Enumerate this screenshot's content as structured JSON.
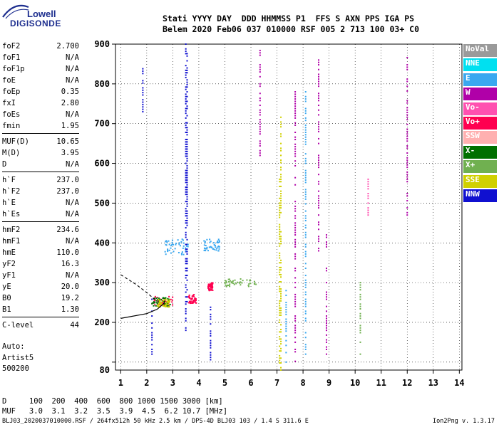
{
  "logo": {
    "line1": "Lowell",
    "line2": "DIGISONDE"
  },
  "header": {
    "line1": "Stati YYYY DAY  DDD HHMMSS P1  FFS S AXN PPS IGA PS",
    "line2": "Belem 2020 Feb06 037 010000 RSF 005 2 713 100 03+ C0"
  },
  "params": [
    {
      "k": "foF2",
      "v": "2.700"
    },
    {
      "k": "foF1",
      "v": "N/A"
    },
    {
      "k": "foF1p",
      "v": "N/A"
    },
    {
      "k": "foE",
      "v": "N/A"
    },
    {
      "k": "foEp",
      "v": "0.35"
    },
    {
      "k": "fxI",
      "v": "2.80"
    },
    {
      "k": "foEs",
      "v": "N/A"
    },
    {
      "k": "fmin",
      "v": "1.95"
    },
    {
      "k": "MUF(D)",
      "v": "10.65"
    },
    {
      "k": "M(D)",
      "v": "3.95"
    },
    {
      "k": "D",
      "v": "N/A"
    },
    {
      "k": "h`F",
      "v": "237.0"
    },
    {
      "k": "h`F2",
      "v": "237.0"
    },
    {
      "k": "h`E",
      "v": "N/A"
    },
    {
      "k": "h`Es",
      "v": "N/A"
    },
    {
      "k": "hmF2",
      "v": "234.6"
    },
    {
      "k": "hmF1",
      "v": "N/A"
    },
    {
      "k": "hmE",
      "v": "110.0"
    },
    {
      "k": "yF2",
      "v": "16.3"
    },
    {
      "k": "yF1",
      "v": "N/A"
    },
    {
      "k": "yE",
      "v": "20.0"
    },
    {
      "k": "B0",
      "v": "19.2"
    },
    {
      "k": "B1",
      "v": "1.30"
    },
    {
      "k": "C-level",
      "v": "44"
    }
  ],
  "auto": {
    "line1": "Auto:",
    "line2": "Artist5",
    "line3": "500200"
  },
  "legend": [
    {
      "label": "NoVal",
      "color": "#9a9a9a"
    },
    {
      "label": "NNE",
      "color": "#00e0f0"
    },
    {
      "label": "E",
      "color": "#3aa8f0"
    },
    {
      "label": "W",
      "color": "#b000a8"
    },
    {
      "label": "Vo-",
      "color": "#ff50b0"
    },
    {
      "label": "Vo+",
      "color": "#ff0050"
    },
    {
      "label": "SSW",
      "color": "#ffb0b0"
    },
    {
      "label": "X-",
      "color": "#007000"
    },
    {
      "label": "X+",
      "color": "#70b050"
    },
    {
      "label": "SSE",
      "color": "#d0d000"
    },
    {
      "label": "NNW",
      "color": "#1010d0"
    }
  ],
  "bottom": {
    "line1": "D     100  200  400  600  800 1000 1500 3000 [km]",
    "line2": "MUF   3.0  3.1  3.2  3.5  3.9  4.5  6.2 10.7 [MHz]"
  },
  "footer": "BLJ03_2020037010000.RSF / 264fx512h 50 kHz 2.5 km / DPS-4D BLJ03 103 / 1.4 S 311.6 E",
  "version": "Ion2Png v. 1.3.17",
  "chart_data": {
    "type": "scatter",
    "title": "",
    "xlabel": "",
    "ylabel": "",
    "xlim": [
      0.8,
      14.1
    ],
    "ylim": [
      80,
      900
    ],
    "x_ticks": [
      "1",
      "2",
      "3",
      "4",
      "5",
      "6",
      "7",
      "8",
      "9",
      "10",
      "11",
      "12",
      "13",
      "14"
    ],
    "y_ticks": [
      "100",
      "200",
      "300",
      "400",
      "500",
      "600",
      "700",
      "800",
      "900"
    ],
    "y_tick_first_label": "80",
    "profile_curve": {
      "x": [
        1.0,
        2.0,
        2.4,
        2.65,
        2.7
      ],
      "y": [
        210,
        222,
        233,
        247,
        255
      ]
    },
    "dashed_curve": {
      "x": [
        1.0,
        1.6,
        2.0,
        2.3
      ],
      "y": [
        320,
        295,
        275,
        258
      ]
    },
    "traces": [
      {
        "name": "NNW",
        "x": 3.5,
        "y_from": 180,
        "y_to": 900
      },
      {
        "name": "NNW",
        "x": 3.55,
        "y_from": 240,
        "y_to": 880
      },
      {
        "name": "SSE",
        "x": 7.1,
        "y_from": 80,
        "y_to": 560
      },
      {
        "name": "SSE",
        "x": 7.15,
        "y_from": 80,
        "y_to": 720
      },
      {
        "name": "W",
        "x": 6.35,
        "y_from": 620,
        "y_to": 900
      },
      {
        "name": "W",
        "x": 7.7,
        "y_from": 90,
        "y_to": 780
      },
      {
        "name": "W",
        "x": 8.6,
        "y_from": 380,
        "y_to": 860
      },
      {
        "name": "W",
        "x": 12.0,
        "y_from": 470,
        "y_to": 870
      },
      {
        "name": "E",
        "x": 8.1,
        "y_from": 120,
        "y_to": 790
      },
      {
        "name": "E",
        "x": 7.35,
        "y_from": 100,
        "y_to": 300
      },
      {
        "name": "NNW",
        "x": 1.85,
        "y_from": 730,
        "y_to": 840
      },
      {
        "name": "NNW",
        "x": 2.2,
        "y_from": 120,
        "y_to": 260
      },
      {
        "name": "NNW",
        "x": 4.45,
        "y_from": 100,
        "y_to": 240
      },
      {
        "name": "W",
        "x": 8.9,
        "y_from": 120,
        "y_to": 420
      },
      {
        "name": "Vo-",
        "x": 10.5,
        "y_from": 470,
        "y_to": 560
      },
      {
        "name": "X+",
        "x": 10.2,
        "y_from": 120,
        "y_to": 300
      }
    ],
    "clusters": [
      {
        "name": "E",
        "x_from": 2.7,
        "x_to": 3.6,
        "y_from": 370,
        "y_to": 410
      },
      {
        "name": "E",
        "x_from": 4.2,
        "x_to": 4.8,
        "y_from": 380,
        "y_to": 410
      },
      {
        "name": "Vo+",
        "x_from": 2.2,
        "x_to": 3.0,
        "y_from": 240,
        "y_to": 265
      },
      {
        "name": "Vo+",
        "x_from": 3.6,
        "x_to": 3.9,
        "y_from": 248,
        "y_to": 270
      },
      {
        "name": "Vo+",
        "x_from": 4.35,
        "x_to": 4.55,
        "y_from": 280,
        "y_to": 300
      },
      {
        "name": "X-",
        "x_from": 2.2,
        "x_to": 2.9,
        "y_from": 240,
        "y_to": 262
      },
      {
        "name": "SSE",
        "x_from": 2.4,
        "x_to": 2.9,
        "y_from": 238,
        "y_to": 258
      },
      {
        "name": "X+",
        "x_from": 5.0,
        "x_to": 6.2,
        "y_from": 290,
        "y_to": 310
      }
    ]
  }
}
